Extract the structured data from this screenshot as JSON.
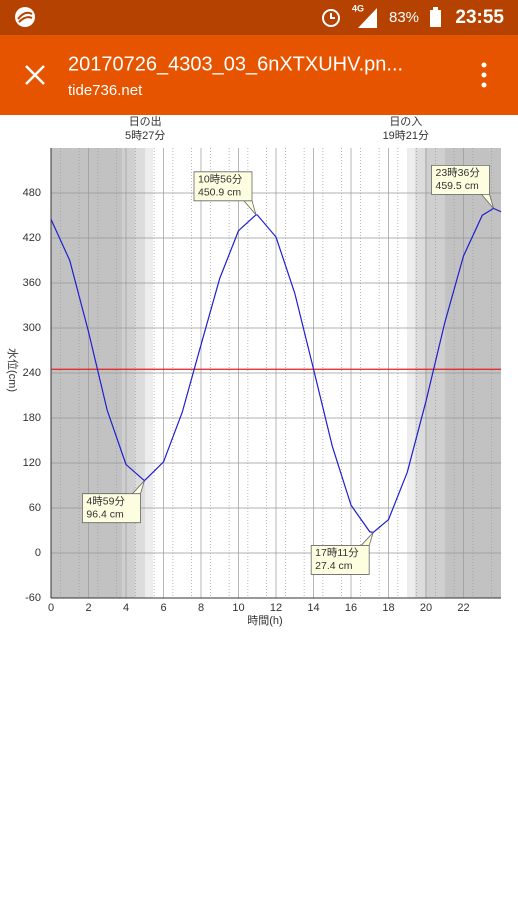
{
  "status_bar": {
    "network": "4G",
    "battery": "83%",
    "time": "23:55"
  },
  "toolbar": {
    "title": "20170726_4303_03_6nXTXUHV.pn...",
    "subtitle": "tide736.net"
  },
  "chart_data": {
    "type": "line",
    "x_label": "時間(h)",
    "y_label": "水位(cm)",
    "x": [
      0,
      1,
      2,
      3,
      4,
      4.983,
      6,
      7,
      8,
      9,
      10,
      10.933,
      11,
      12,
      13,
      14,
      15,
      16,
      17,
      17.183,
      18,
      19,
      20,
      21,
      22,
      23,
      23.6,
      24
    ],
    "values": [
      445,
      390,
      295,
      190,
      118,
      96.4,
      121.4,
      187.7,
      277.6,
      366.2,
      429.7,
      450.9,
      450.8,
      421.3,
      346.5,
      245.3,
      142.6,
      63.8,
      28.3,
      27.4,
      44.5,
      107.6,
      202.4,
      307,
      396,
      450.2,
      459.5,
      455
    ],
    "color": "#1f1fd0",
    "reference_line": {
      "value": 245,
      "color": "#e02020"
    },
    "xlim": [
      0,
      24
    ],
    "xticks": [
      0,
      2,
      4,
      6,
      8,
      10,
      12,
      14,
      16,
      18,
      20,
      22
    ],
    "ylim": [
      -60,
      540
    ],
    "yticks": [
      -60,
      0,
      60,
      120,
      180,
      240,
      300,
      360,
      420,
      480
    ],
    "grid": true,
    "sun_labels": [
      {
        "title": "日の出",
        "time": "5時27分",
        "x": 5.45
      },
      {
        "title": "日の入",
        "time": "19時21分",
        "x": 19.35
      }
    ],
    "annotations": [
      {
        "label": "4時59分",
        "value_label": "96.4 cm",
        "x": 4.983,
        "y": 96.4,
        "kind": "low"
      },
      {
        "label": "10時56分",
        "value_label": "450.9 cm",
        "x": 10.933,
        "y": 450.9,
        "kind": "high"
      },
      {
        "label": "17時11分",
        "value_label": "27.4 cm",
        "x": 17.183,
        "y": 27.4,
        "kind": "low"
      },
      {
        "label": "23時36分",
        "value_label": "459.5 cm",
        "x": 23.6,
        "y": 459.5,
        "kind": "high"
      }
    ]
  }
}
